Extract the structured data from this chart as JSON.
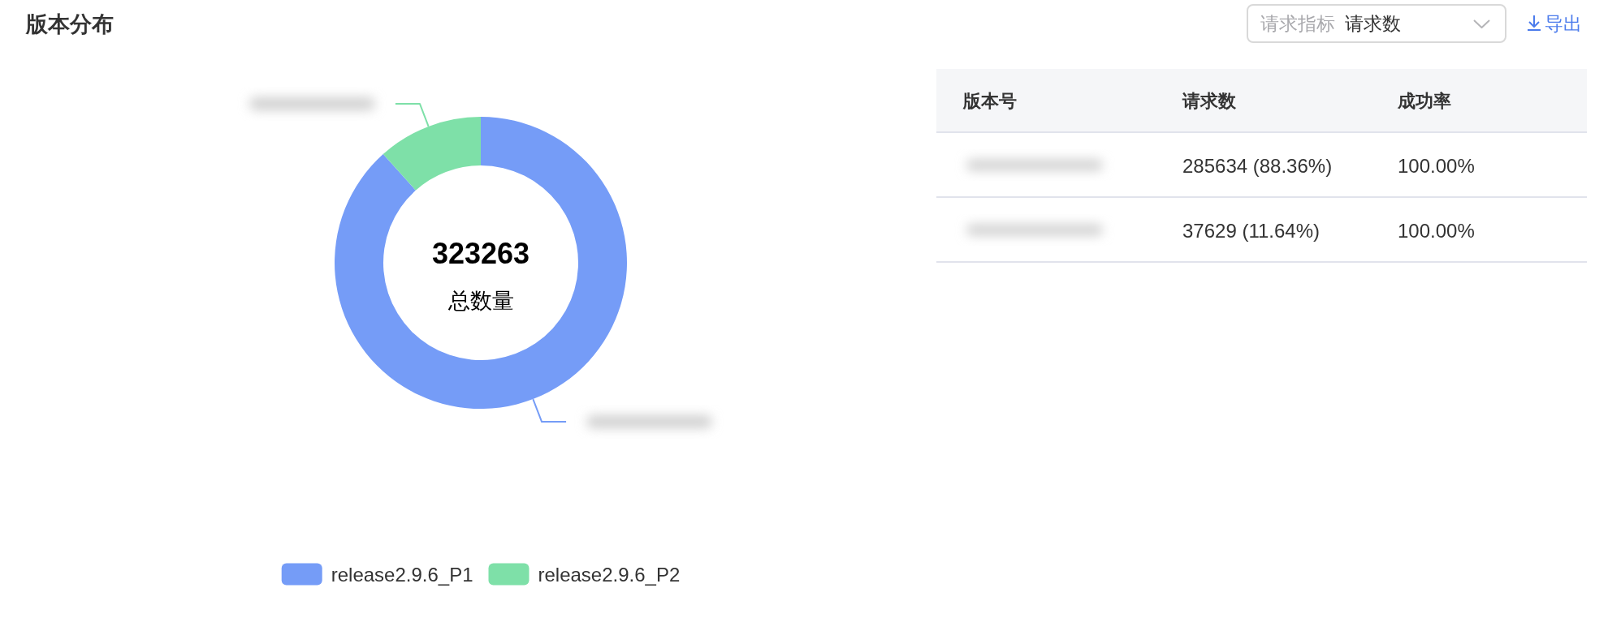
{
  "chart_data": [
    {
      "type": "donut",
      "title": "版本分布",
      "categories": [
        "release2.9.6_P1",
        "release2.9.6_P2"
      ],
      "values": [
        88.36,
        11.64
      ],
      "colors": [
        "#759cf7",
        "#7ee0a8"
      ],
      "legend": "bottom",
      "annotations": [
        "323263",
        "总数量",
        "请求指标",
        "请求数",
        "导出"
      ]
    },
    {
      "type": "other",
      "annotations": [
        "版本号",
        "请求数",
        "成功率",
        "285634 (88.36%)",
        "100.00%",
        "37629 (11.64%)",
        "100.00%"
      ]
    }
  ]
}
